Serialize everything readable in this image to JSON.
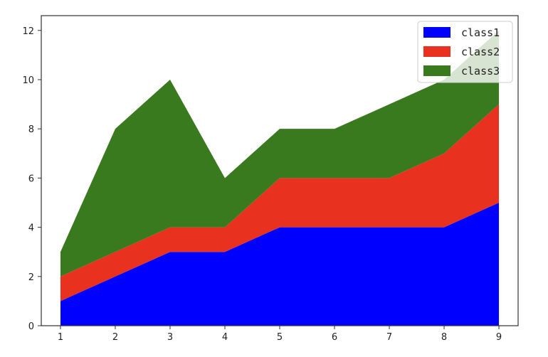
{
  "chart_data": {
    "type": "area",
    "stacked": true,
    "x": [
      1,
      2,
      3,
      4,
      5,
      6,
      7,
      8,
      9
    ],
    "series": [
      {
        "name": "class1",
        "values": [
          1,
          2,
          3,
          3,
          4,
          4,
          4,
          4,
          5
        ],
        "color": "#0000ff"
      },
      {
        "name": "class2",
        "values": [
          1,
          1,
          1,
          1,
          2,
          2,
          2,
          3,
          4
        ],
        "color": "#e8311f"
      },
      {
        "name": "class3",
        "values": [
          1,
          5,
          6,
          2,
          2,
          2,
          3,
          3,
          3
        ],
        "color": "#3a7a1e"
      }
    ],
    "xticks": [
      "1",
      "2",
      "3",
      "4",
      "5",
      "6",
      "7",
      "8",
      "9"
    ],
    "yticks": [
      "0",
      "2",
      "4",
      "6",
      "8",
      "10",
      "12"
    ],
    "xlim": [
      0.65,
      9.35
    ],
    "ylim": [
      0,
      12.6
    ],
    "title": "",
    "xlabel": "",
    "ylabel": "",
    "grid": false,
    "legend": "top-right"
  }
}
